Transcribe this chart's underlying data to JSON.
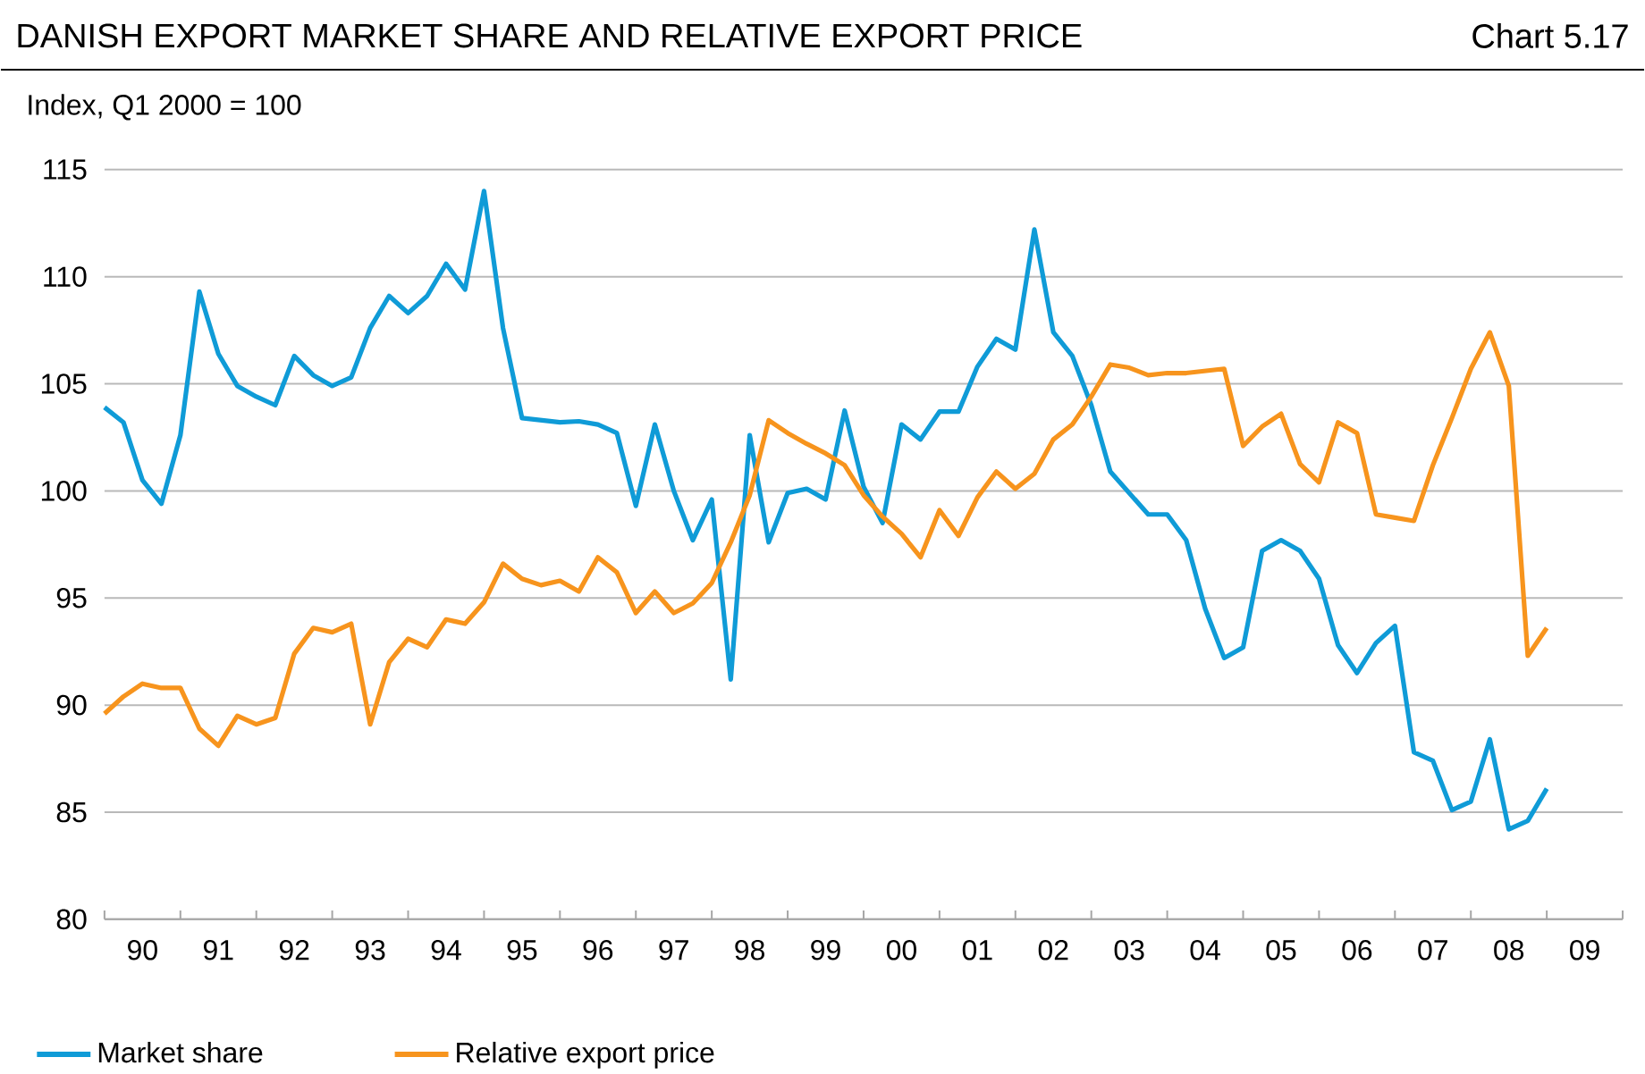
{
  "chart_data": {
    "type": "line",
    "title": "DANISH EXPORT MARKET SHARE AND RELATIVE EXPORT PRICE",
    "subtitle": "Chart 5.17",
    "ylabel": "Index, Q1 2000 = 100",
    "x": [
      "1990-01",
      "1990-04",
      "1990-07",
      "1990-10",
      "1991-01",
      "1991-04",
      "1991-07",
      "1991-10",
      "1992-01",
      "1992-04",
      "1992-07",
      "1992-10",
      "1993-01",
      "1993-04",
      "1993-07",
      "1993-10",
      "1994-01",
      "1994-04",
      "1994-07",
      "1994-10",
      "1995-01",
      "1995-04",
      "1995-07",
      "1995-10",
      "1996-01",
      "1996-04",
      "1996-07",
      "1996-10",
      "1997-01",
      "1997-04",
      "1997-07",
      "1997-10",
      "1998-01",
      "1998-04",
      "1998-07",
      "1998-10",
      "1999-01",
      "1999-04",
      "1999-07",
      "1999-10",
      "2000-01",
      "2000-04",
      "2000-07",
      "2000-10",
      "2001-01",
      "2001-04",
      "2001-07",
      "2001-10",
      "2002-01",
      "2002-04",
      "2002-07",
      "2002-10",
      "2003-01",
      "2003-04",
      "2003-07",
      "2003-10",
      "2004-01",
      "2004-04",
      "2004-07",
      "2004-10",
      "2005-01",
      "2005-04",
      "2005-07",
      "2005-10",
      "2006-01",
      "2006-04",
      "2006-07",
      "2006-10",
      "2007-01",
      "2007-04",
      "2007-07",
      "2007-10",
      "2008-01",
      "2008-04",
      "2008-07",
      "2008-10",
      "2009-01"
    ],
    "series": [
      {
        "name": "Market share",
        "color": "#0f9bd7",
        "values": [
          103.9,
          103.2,
          100.5,
          99.4,
          102.6,
          109.3,
          106.4,
          104.9,
          104.4,
          104.0,
          106.3,
          105.4,
          104.9,
          105.3,
          107.6,
          109.1,
          108.3,
          109.1,
          110.6,
          109.4,
          114.0,
          107.6,
          103.4,
          103.3,
          103.2,
          103.25,
          103.1,
          102.7,
          99.3,
          103.1,
          100.0,
          97.7,
          99.6,
          91.2,
          102.6,
          97.6,
          99.9,
          100.1,
          99.6,
          103.75,
          100.2,
          98.5,
          103.1,
          102.4,
          103.7,
          103.7,
          105.8,
          107.1,
          106.6,
          112.2,
          107.4,
          106.3,
          104.0,
          100.9,
          99.9,
          98.9,
          98.9,
          97.7,
          94.5,
          92.2,
          92.7,
          97.2,
          97.7,
          97.2,
          95.9,
          92.8,
          91.5,
          92.9,
          93.7,
          87.8,
          87.4,
          85.1,
          85.5,
          88.4,
          84.2,
          84.6,
          86.1
        ]
      },
      {
        "name": "Relative export price",
        "color": "#f7941d",
        "values": [
          89.6,
          90.4,
          91.0,
          90.8,
          90.8,
          88.9,
          88.1,
          89.5,
          89.1,
          89.4,
          92.4,
          93.6,
          93.4,
          93.8,
          89.1,
          92.0,
          93.1,
          92.7,
          94.0,
          93.8,
          94.8,
          96.6,
          95.9,
          95.6,
          95.8,
          95.3,
          96.9,
          96.2,
          94.3,
          95.3,
          94.3,
          94.75,
          95.7,
          97.6,
          99.8,
          103.3,
          102.7,
          102.2,
          101.75,
          101.2,
          99.8,
          98.8,
          98.0,
          96.9,
          99.1,
          97.9,
          99.7,
          100.9,
          100.1,
          100.8,
          102.4,
          103.1,
          104.4,
          105.9,
          105.75,
          105.4,
          105.5,
          105.5,
          105.6,
          105.7,
          102.1,
          103.0,
          103.6,
          101.25,
          100.4,
          103.2,
          102.7,
          98.9,
          98.75,
          98.6,
          101.2,
          103.4,
          105.7,
          107.4,
          104.9,
          92.3,
          93.6
        ]
      }
    ],
    "xlim": [
      "1990-01",
      "2010-01"
    ],
    "xticks": [
      {
        "value": "1990-01",
        "label": null
      },
      {
        "value": "1990-07",
        "label": "90"
      },
      {
        "value": "1991-01",
        "label": null
      },
      {
        "value": "1991-07",
        "label": "91"
      },
      {
        "value": "1992-01",
        "label": null
      },
      {
        "value": "1992-07",
        "label": "92"
      },
      {
        "value": "1993-01",
        "label": null
      },
      {
        "value": "1993-07",
        "label": "93"
      },
      {
        "value": "1994-01",
        "label": null
      },
      {
        "value": "1994-07",
        "label": "94"
      },
      {
        "value": "1995-01",
        "label": null
      },
      {
        "value": "1995-07",
        "label": "95"
      },
      {
        "value": "1996-01",
        "label": null
      },
      {
        "value": "1996-07",
        "label": "96"
      },
      {
        "value": "1997-01",
        "label": null
      },
      {
        "value": "1997-07",
        "label": "97"
      },
      {
        "value": "1998-01",
        "label": null
      },
      {
        "value": "1998-07",
        "label": "98"
      },
      {
        "value": "1999-01",
        "label": null
      },
      {
        "value": "1999-07",
        "label": "99"
      },
      {
        "value": "2000-01",
        "label": null
      },
      {
        "value": "2000-07",
        "label": "00"
      },
      {
        "value": "2001-01",
        "label": null
      },
      {
        "value": "2001-07",
        "label": "01"
      },
      {
        "value": "2002-01",
        "label": null
      },
      {
        "value": "2002-07",
        "label": "02"
      },
      {
        "value": "2003-01",
        "label": null
      },
      {
        "value": "2003-07",
        "label": "03"
      },
      {
        "value": "2004-01",
        "label": null
      },
      {
        "value": "2004-07",
        "label": "04"
      },
      {
        "value": "2005-01",
        "label": null
      },
      {
        "value": "2005-07",
        "label": "05"
      },
      {
        "value": "2006-01",
        "label": null
      },
      {
        "value": "2006-07",
        "label": "06"
      },
      {
        "value": "2007-01",
        "label": null
      },
      {
        "value": "2007-07",
        "label": "07"
      },
      {
        "value": "2008-01",
        "label": null
      },
      {
        "value": "2008-07",
        "label": "08"
      },
      {
        "value": "2009-01",
        "label": null
      },
      {
        "value": "2009-07",
        "label": "09"
      },
      {
        "value": "2010-01",
        "label": null
      }
    ],
    "ylim": [
      80,
      115
    ],
    "yticks": [
      80,
      85,
      90,
      95,
      100,
      105,
      110,
      115
    ],
    "grid": "y",
    "legend": "bottom"
  }
}
